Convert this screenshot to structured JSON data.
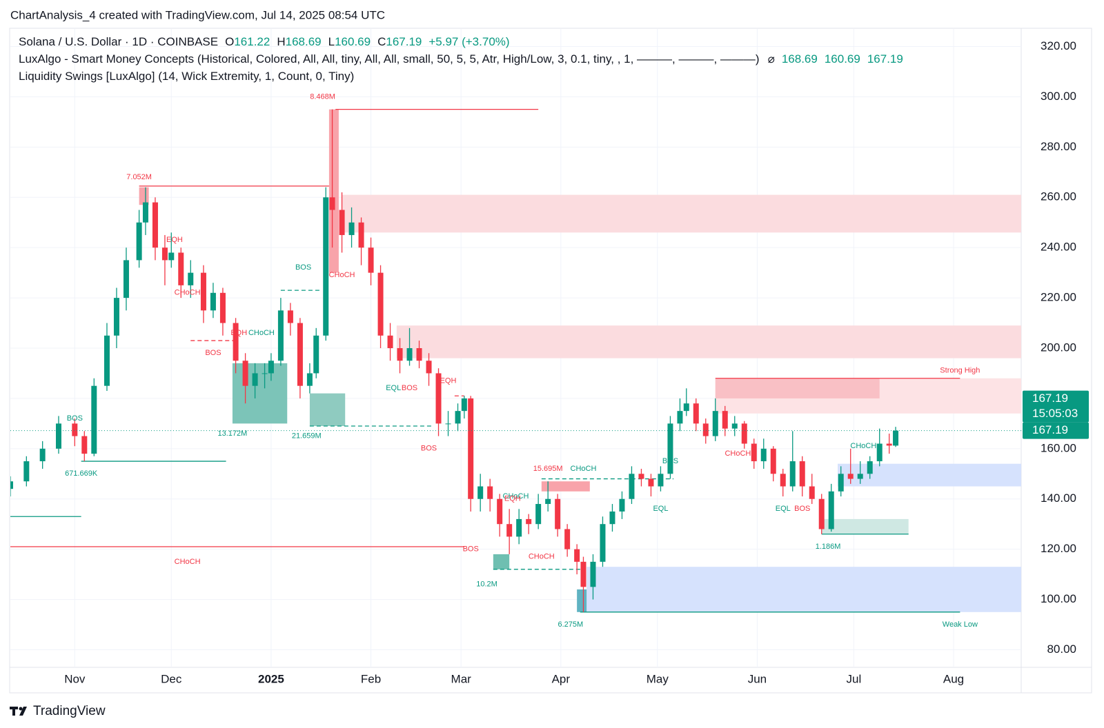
{
  "header": {
    "title": "ChartAnalysis_4 created with TradingView.com, Jul 14, 2025 08:54 UTC",
    "footer": "TradingView"
  },
  "chart_data": {
    "type": "candlestick",
    "symbol": "Solana / U.S. Dollar · 1D · COINBASE",
    "ohlc_items": [
      [
        "O",
        "161.22"
      ],
      [
        "H",
        "168.69"
      ],
      [
        "L",
        "160.69"
      ],
      [
        "C",
        "167.19"
      ]
    ],
    "change": "+5.97 (+3.70%)",
    "indicators": [
      {
        "text": "LuxAlgo - Smart Money Concepts (Historical, Colored, All, All, tiny, All, All, small, 50, 5, 5, Atr, High/Low, 3, 0.1, tiny, , 1, ———, ———, ———)",
        "symbol": "⌀",
        "values": [
          "168.69",
          "160.69",
          "167.19"
        ]
      },
      {
        "text": "Liquidity Swings [LuxAlgo] (14, Wick Extremity, 1, Count, 0, Tiny)"
      }
    ],
    "up_color": "#089981",
    "down_color": "#f23645",
    "xlim": [
      0,
      314
    ],
    "ylim": [
      73,
      327
    ],
    "xticks": [
      {
        "value": 20,
        "label": "Nov"
      },
      {
        "value": 50,
        "label": "Dec"
      },
      {
        "value": 81,
        "label": "2025"
      },
      {
        "value": 112,
        "label": "Feb"
      },
      {
        "value": 140,
        "label": "Mar"
      },
      {
        "value": 171,
        "label": "Apr"
      },
      {
        "value": 201,
        "label": "May"
      },
      {
        "value": 232,
        "label": "Jun"
      },
      {
        "value": 262,
        "label": "Jul"
      },
      {
        "value": 293,
        "label": "Aug"
      }
    ],
    "yticks": [
      {
        "value": 80,
        "label": "80.00"
      },
      {
        "value": 100,
        "label": "100.00"
      },
      {
        "value": 120,
        "label": "120.00"
      },
      {
        "value": 140,
        "label": "140.00"
      },
      {
        "value": 160,
        "label": "160.00"
      },
      {
        "value": 180,
        "label": "180.00"
      },
      {
        "value": 200,
        "label": "200.00"
      },
      {
        "value": 220,
        "label": "220.00"
      },
      {
        "value": 240,
        "label": "240.00"
      },
      {
        "value": 260,
        "label": "260.00"
      },
      {
        "value": 280,
        "label": "280.00"
      },
      {
        "value": 300,
        "label": "300.00"
      },
      {
        "value": 320,
        "label": "320.00"
      }
    ],
    "grid": true,
    "x": [
      0,
      5,
      10,
      15,
      20,
      23,
      26,
      30,
      33,
      36,
      40,
      42,
      45,
      48,
      50,
      53,
      56,
      60,
      63,
      66,
      70,
      73,
      76,
      79,
      81,
      84,
      87,
      90,
      93,
      95,
      98,
      100,
      103,
      106,
      109,
      112,
      115,
      118,
      121,
      124,
      127,
      130,
      133,
      136,
      139,
      141,
      143,
      146,
      149,
      152,
      155,
      158,
      161,
      164,
      167,
      170,
      173,
      176,
      178,
      181,
      184,
      187,
      190,
      193,
      196,
      199,
      202,
      205,
      208,
      210,
      213,
      216,
      219,
      222,
      225,
      228,
      231,
      234,
      237,
      240,
      243,
      246,
      249,
      252,
      255,
      258,
      261,
      264,
      267,
      270,
      273,
      275
    ],
    "ohlc": [
      [
        144,
        149,
        141,
        147
      ],
      [
        147,
        157,
        145,
        155
      ],
      [
        155,
        163,
        152,
        160
      ],
      [
        160,
        173,
        158,
        170
      ],
      [
        170,
        172,
        161,
        165
      ],
      [
        165,
        167,
        155,
        158
      ],
      [
        158,
        188,
        157,
        185
      ],
      [
        185,
        210,
        183,
        205
      ],
      [
        205,
        224,
        200,
        220
      ],
      [
        220,
        240,
        215,
        235
      ],
      [
        235,
        255,
        232,
        250
      ],
      [
        250,
        264,
        245,
        258
      ],
      [
        258,
        260,
        235,
        240
      ],
      [
        240,
        245,
        225,
        235
      ],
      [
        235,
        246,
        232,
        238
      ],
      [
        238,
        240,
        220,
        225
      ],
      [
        225,
        235,
        220,
        230
      ],
      [
        230,
        233,
        210,
        215
      ],
      [
        215,
        226,
        212,
        222
      ],
      [
        222,
        224,
        205,
        210
      ],
      [
        210,
        212,
        190,
        195
      ],
      [
        195,
        198,
        178,
        185
      ],
      [
        185,
        194,
        180,
        190
      ],
      [
        190,
        194,
        184,
        190
      ],
      [
        190,
        198,
        187,
        195
      ],
      [
        195,
        220,
        193,
        215
      ],
      [
        215,
        218,
        205,
        210
      ],
      [
        210,
        212,
        180,
        185
      ],
      [
        185,
        194,
        182,
        190
      ],
      [
        190,
        208,
        188,
        205
      ],
      [
        205,
        264,
        203,
        260
      ],
      [
        260,
        295,
        240,
        255
      ],
      [
        255,
        262,
        238,
        245
      ],
      [
        245,
        256,
        240,
        250
      ],
      [
        250,
        252,
        233,
        240
      ],
      [
        240,
        244,
        225,
        230
      ],
      [
        230,
        233,
        200,
        205
      ],
      [
        205,
        210,
        195,
        200
      ],
      [
        200,
        204,
        190,
        195
      ],
      [
        195,
        208,
        193,
        200
      ],
      [
        200,
        203,
        192,
        195
      ],
      [
        195,
        198,
        185,
        190
      ],
      [
        190,
        192,
        165,
        170
      ],
      [
        170,
        175,
        165,
        170
      ],
      [
        170,
        178,
        167,
        175
      ],
      [
        175,
        181,
        172,
        180
      ],
      [
        180,
        181,
        135,
        140
      ],
      [
        140,
        150,
        135,
        145
      ],
      [
        145,
        148,
        135,
        140
      ],
      [
        140,
        142,
        125,
        130
      ],
      [
        130,
        136,
        118,
        125
      ],
      [
        125,
        136,
        122,
        132
      ],
      [
        132,
        134,
        126,
        130
      ],
      [
        130,
        142,
        128,
        138
      ],
      [
        138,
        147,
        135,
        140
      ],
      [
        140,
        142,
        125,
        128
      ],
      [
        128,
        130,
        117,
        120
      ],
      [
        120,
        122,
        110,
        115
      ],
      [
        115,
        117,
        95,
        105
      ],
      [
        105,
        118,
        100,
        115
      ],
      [
        115,
        133,
        113,
        130
      ],
      [
        130,
        138,
        127,
        135
      ],
      [
        135,
        143,
        132,
        140
      ],
      [
        140,
        153,
        138,
        150
      ],
      [
        150,
        152,
        145,
        148
      ],
      [
        148,
        150,
        141,
        145
      ],
      [
        145,
        153,
        143,
        150
      ],
      [
        150,
        173,
        148,
        170
      ],
      [
        170,
        180,
        167,
        175
      ],
      [
        175,
        184,
        173,
        178
      ],
      [
        178,
        180,
        167,
        170
      ],
      [
        170,
        172,
        162,
        165
      ],
      [
        165,
        180,
        163,
        175
      ],
      [
        175,
        177,
        165,
        168
      ],
      [
        168,
        173,
        165,
        170
      ],
      [
        170,
        171,
        160,
        162
      ],
      [
        162,
        164,
        152,
        155
      ],
      [
        155,
        164,
        152,
        160
      ],
      [
        160,
        161,
        147,
        150
      ],
      [
        150,
        152,
        141,
        145
      ],
      [
        145,
        167,
        143,
        155
      ],
      [
        155,
        157,
        141,
        145
      ],
      [
        145,
        150,
        138,
        140
      ],
      [
        140,
        142,
        126,
        128
      ],
      [
        128,
        146,
        127,
        143
      ],
      [
        143,
        153,
        141,
        150
      ],
      [
        150,
        160,
        146,
        148
      ],
      [
        148,
        155,
        146,
        150
      ],
      [
        150,
        157,
        148,
        155
      ],
      [
        155,
        168,
        153,
        162
      ],
      [
        162,
        166,
        158,
        161.22
      ],
      [
        161.22,
        168.69,
        160.69,
        167.19
      ]
    ],
    "zones": [
      {
        "x": [
          103,
          314
        ],
        "y": [
          246,
          261
        ],
        "color": "#fbdcdf"
      },
      {
        "x": [
          120,
          314
        ],
        "y": [
          196,
          209
        ],
        "color": "#fbdcdf"
      },
      {
        "x": [
          219,
          314
        ],
        "y": [
          174,
          188
        ],
        "color": "#fde3e5"
      },
      {
        "x": [
          219,
          270
        ],
        "y": [
          180,
          188
        ],
        "color": "#f9c0c5"
      },
      {
        "x": [
          179,
          314
        ],
        "y": [
          95,
          113
        ],
        "color": "#d6e2fd"
      },
      {
        "x": [
          257,
          314
        ],
        "y": [
          145,
          154
        ],
        "color": "#d6e2fd"
      },
      {
        "x": [
          252,
          279
        ],
        "y": [
          126,
          132
        ],
        "color": "#cfe8e3"
      },
      {
        "x": [
          69,
          86
        ],
        "y": [
          170,
          194
        ],
        "color": "#7cc4b8"
      },
      {
        "x": [
          93,
          104
        ],
        "y": [
          169,
          182
        ],
        "color": "#8fcbc0"
      },
      {
        "x": [
          150,
          155
        ],
        "y": [
          112,
          118
        ],
        "color": "#6fbfb1"
      },
      {
        "x": [
          176,
          179
        ],
        "y": [
          95,
          104
        ],
        "color": "#5fb3c2"
      },
      {
        "x": [
          165,
          180
        ],
        "y": [
          143,
          147
        ],
        "color": "#f8a3aa"
      },
      {
        "x": [
          99,
          102
        ],
        "y": [
          230,
          295
        ],
        "color": "#f8a3aa"
      },
      {
        "x": [
          40,
          43
        ],
        "y": [
          257,
          264
        ],
        "color": "#f8a3aa"
      }
    ],
    "lines": [
      {
        "x": [
          101,
          164
        ],
        "y": 295,
        "color": "#f23645"
      },
      {
        "x": [
          40,
          99
        ],
        "y": 264.5,
        "color": "#f23645"
      },
      {
        "x": [
          219,
          295
        ],
        "y": 188,
        "color": "#f23645"
      },
      {
        "x": [
          177,
          295
        ],
        "y": 95,
        "color": "#089981"
      },
      {
        "x": [
          22,
          67
        ],
        "y": 155,
        "color": "#089981"
      },
      {
        "x": [
          0,
          22
        ],
        "y": 133,
        "color": "#089981"
      },
      {
        "x": [
          0,
          141
        ],
        "y": 121,
        "color": "#f23645"
      },
      {
        "x": [
          252,
          279
        ],
        "y": 126,
        "color": "#089981"
      },
      {
        "x": [
          93,
          131
        ],
        "y": 169,
        "color": "#089981",
        "dash": true
      },
      {
        "x": [
          150,
          177
        ],
        "y": 112,
        "color": "#089981",
        "dash": true
      },
      {
        "x": [
          165,
          206
        ],
        "y": 148,
        "color": "#089981",
        "dash": true
      },
      {
        "x": [
          84,
          96
        ],
        "y": 223,
        "color": "#089981",
        "dash": true
      },
      {
        "x": [
          56,
          70
        ],
        "y": 203,
        "color": "#f23645",
        "dash": true
      },
      {
        "x": [
          138,
          141
        ],
        "y": 181,
        "color": "#f23645",
        "dash": true
      }
    ],
    "labels": [
      {
        "text": "BOS",
        "x": 20,
        "y": 172,
        "color": "#089981"
      },
      {
        "text": "671.669K",
        "x": 22,
        "y": 150,
        "color": "#089981"
      },
      {
        "text": "7.052M",
        "x": 40,
        "y": 268,
        "color": "#f23645"
      },
      {
        "text": "EQH",
        "x": 51,
        "y": 243,
        "color": "#f23645"
      },
      {
        "text": "CHoCH",
        "x": 55,
        "y": 222,
        "color": "#f23645"
      },
      {
        "text": "BOS",
        "x": 63,
        "y": 198,
        "color": "#f23645"
      },
      {
        "text": "EQH",
        "x": 71,
        "y": 206,
        "color": "#f23645"
      },
      {
        "text": "CHoCH",
        "x": 78,
        "y": 206,
        "color": "#089981"
      },
      {
        "text": "13.172M",
        "x": 69,
        "y": 166,
        "color": "#089981"
      },
      {
        "text": "BOS",
        "x": 91,
        "y": 232,
        "color": "#089981"
      },
      {
        "text": "CHoCH",
        "x": 103,
        "y": 229,
        "color": "#f23645"
      },
      {
        "text": "8.468M",
        "x": 97,
        "y": 300,
        "color": "#f23645"
      },
      {
        "text": "21.659M",
        "x": 92,
        "y": 165,
        "color": "#089981"
      },
      {
        "text": "EQL",
        "x": 119,
        "y": 184,
        "color": "#089981"
      },
      {
        "text": "BOS",
        "x": 124,
        "y": 184,
        "color": "#f23645"
      },
      {
        "text": "EQH",
        "x": 136,
        "y": 187,
        "color": "#f23645"
      },
      {
        "text": "BOS",
        "x": 130,
        "y": 160,
        "color": "#f23645"
      },
      {
        "text": "CHoCH",
        "x": 55,
        "y": 115,
        "color": "#f23645"
      },
      {
        "text": "15.695M",
        "x": 167,
        "y": 152,
        "color": "#f23645"
      },
      {
        "text": "CHoCH",
        "x": 178,
        "y": 152,
        "color": "#089981"
      },
      {
        "text": "CHoCH",
        "x": 157,
        "y": 141,
        "color": "#089981"
      },
      {
        "text": "EQH",
        "x": 156,
        "y": 140,
        "color": "#f23645"
      },
      {
        "text": "BOS",
        "x": 143,
        "y": 120,
        "color": "#f23645"
      },
      {
        "text": "CHoCH",
        "x": 165,
        "y": 117,
        "color": "#f23645"
      },
      {
        "text": "10.2M",
        "x": 148,
        "y": 106,
        "color": "#089981"
      },
      {
        "text": "6.275M",
        "x": 174,
        "y": 90,
        "color": "#089981"
      },
      {
        "text": "BOS",
        "x": 205,
        "y": 155,
        "color": "#089981"
      },
      {
        "text": "EQL",
        "x": 202,
        "y": 136,
        "color": "#089981"
      },
      {
        "text": "CHoCH",
        "x": 226,
        "y": 158,
        "color": "#f23645"
      },
      {
        "text": "EQL",
        "x": 240,
        "y": 136,
        "color": "#089981"
      },
      {
        "text": "BOS",
        "x": 246,
        "y": 136,
        "color": "#f23645"
      },
      {
        "text": "1.186M",
        "x": 254,
        "y": 121,
        "color": "#089981"
      },
      {
        "text": "CHoCH",
        "x": 265,
        "y": 161,
        "color": "#089981"
      },
      {
        "text": "Strong High",
        "x": 295,
        "y": 191,
        "color": "#f23645"
      },
      {
        "text": "Weak Low",
        "x": 295,
        "y": 90,
        "color": "#089981"
      }
    ],
    "price_tag": {
      "value": 167.19,
      "label": "167.19",
      "countdown": "15:05:03",
      "color": "#089981"
    }
  }
}
